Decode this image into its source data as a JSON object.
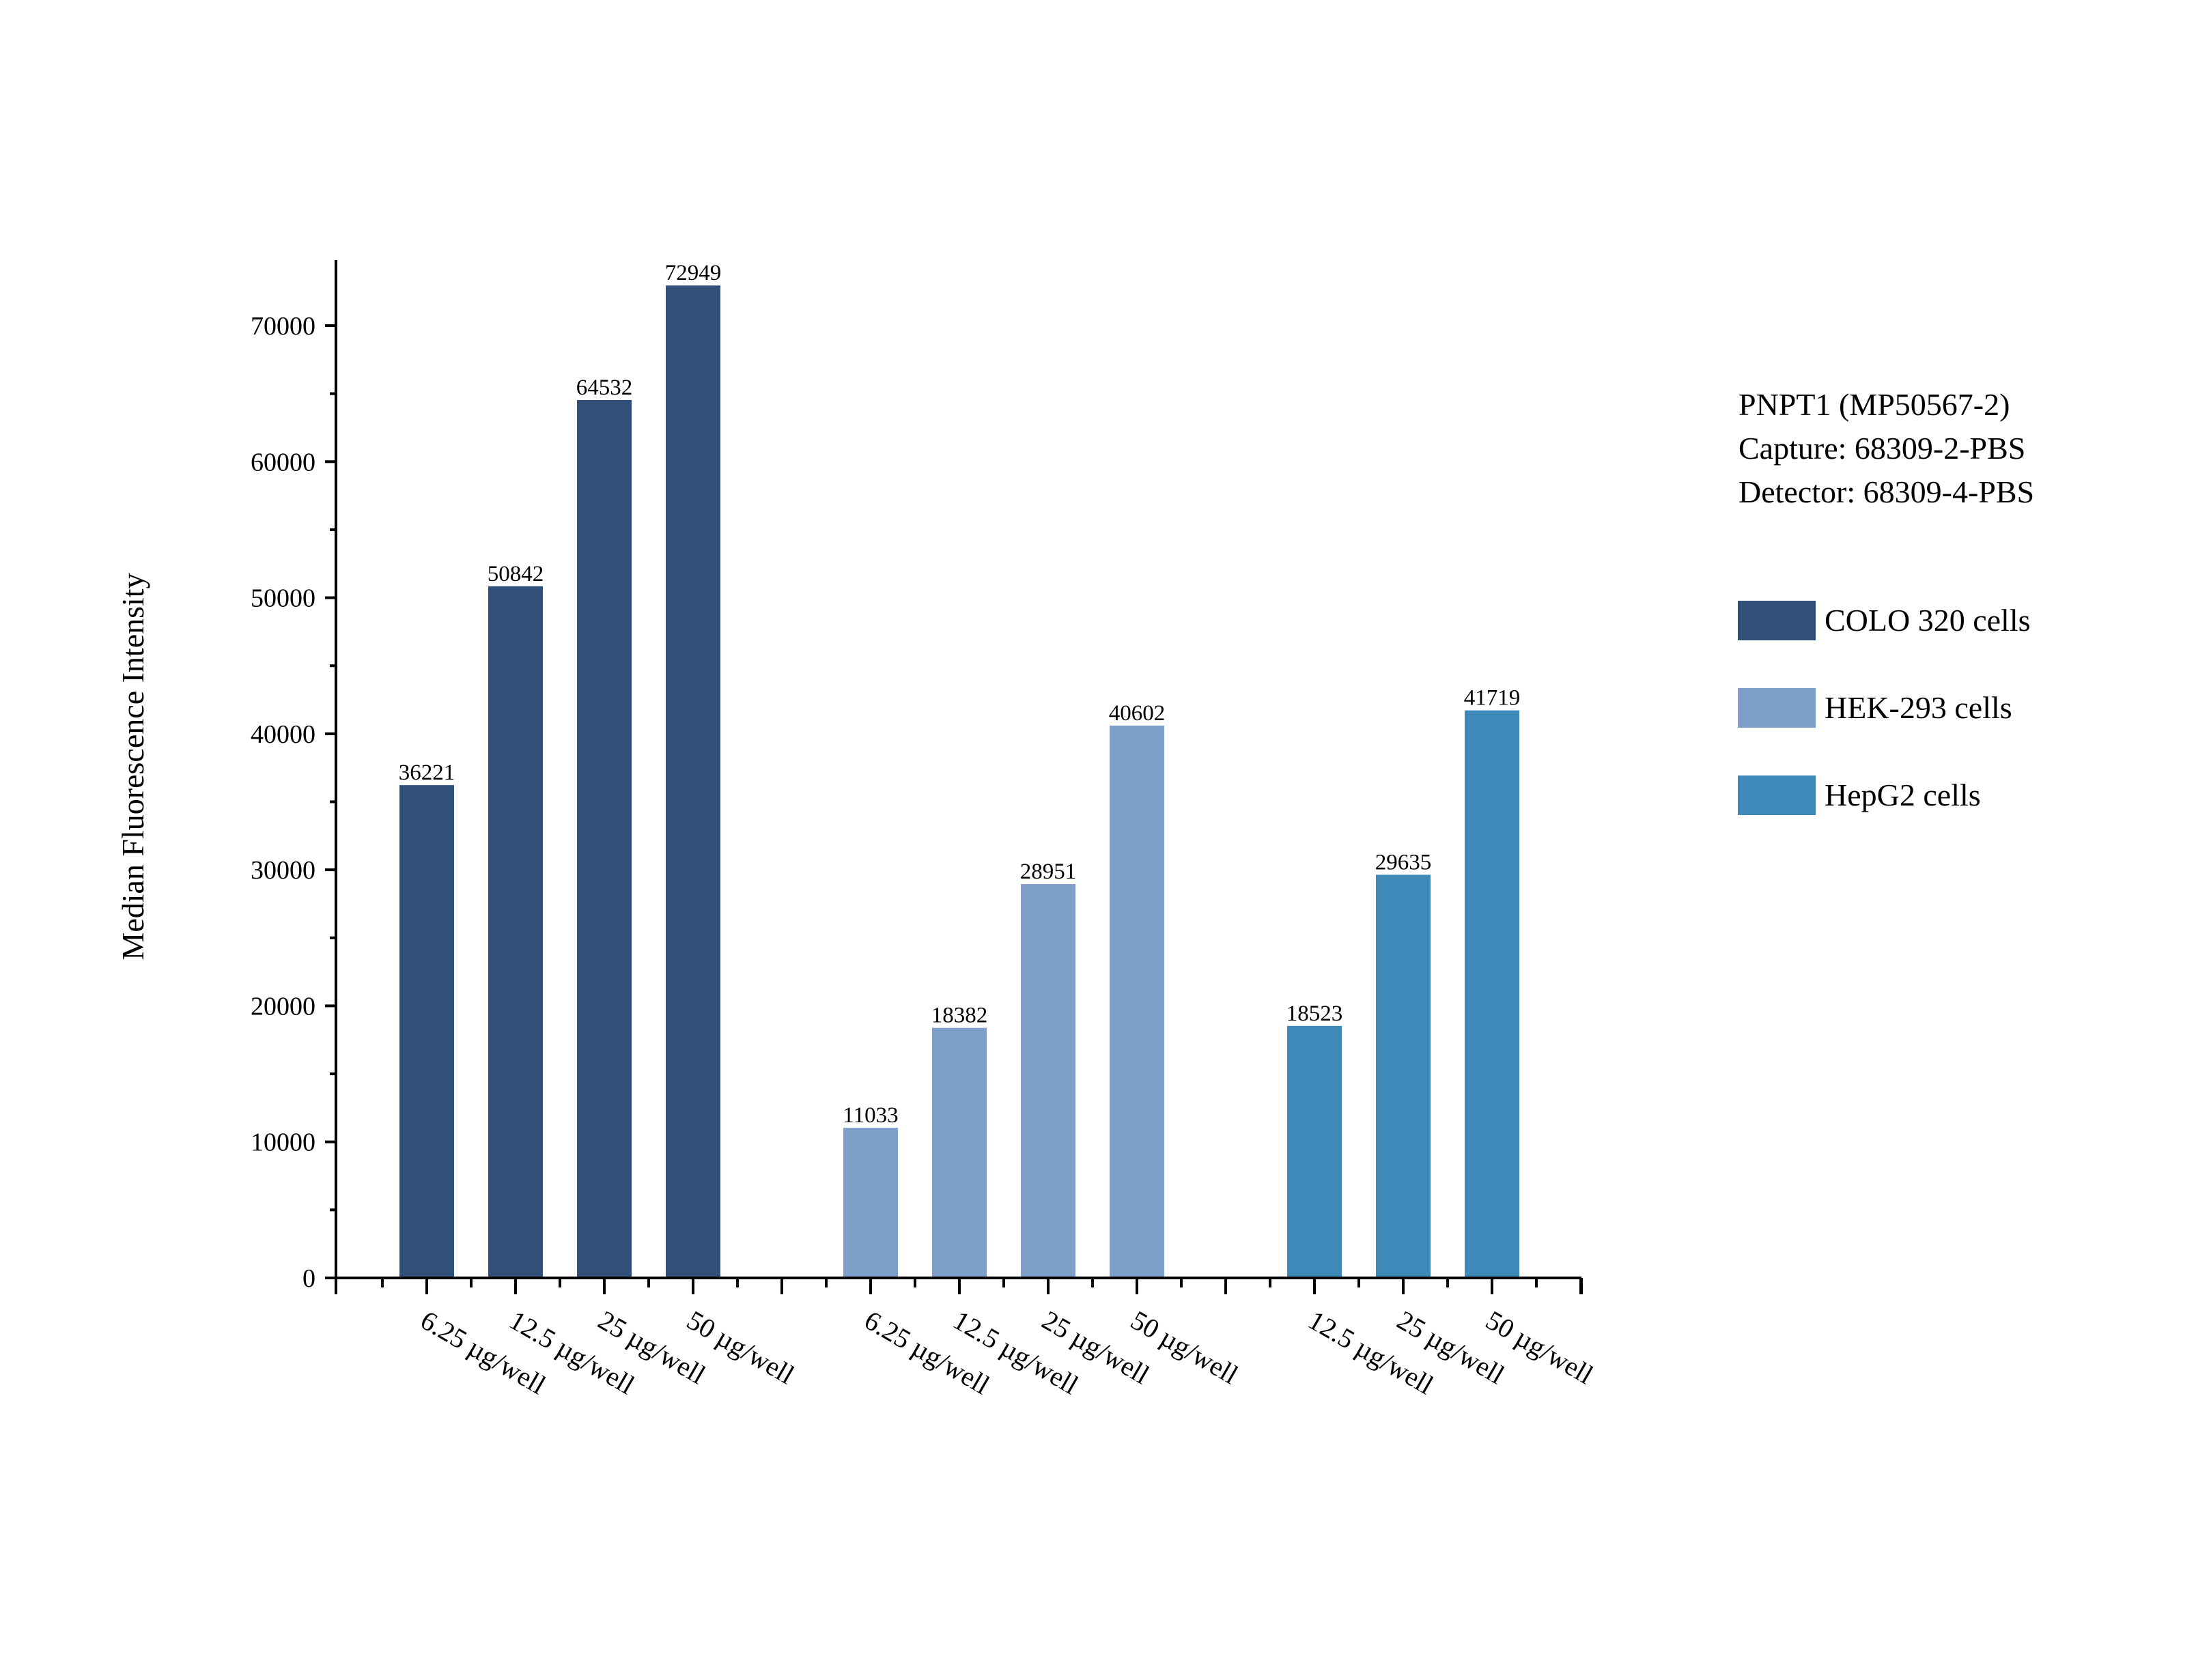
{
  "chart_data": {
    "type": "bar",
    "title": "",
    "ylabel": "Median Fluorescence Intensity",
    "xlabel": "",
    "ylim": [
      0,
      75000
    ],
    "y_ticks": [
      0,
      10000,
      20000,
      30000,
      40000,
      50000,
      60000,
      70000
    ],
    "y_tick_labels": [
      "0",
      "10000",
      "20000",
      "30000",
      "40000",
      "50000",
      "60000",
      "70000"
    ],
    "grid": false,
    "legend_position": "right",
    "info_lines": [
      "PNPT1 (MP50567-2)",
      "Capture: 68309-2-PBS",
      "Detector: 68309-4-PBS"
    ],
    "series": [
      {
        "name": "COLO 320 cells",
        "color": "#304f79",
        "categories": [
          "6.25 µg/well",
          "12.5 µg/well",
          "25 µg/well",
          "50 µg/well"
        ],
        "values": [
          36221,
          50842,
          64532,
          72949
        ],
        "value_labels": [
          "36221",
          "50842",
          "64532",
          "72949"
        ]
      },
      {
        "name": "HEK-293 cells",
        "color": "#7f9fcb",
        "categories": [
          "6.25 µg/well",
          "12.5 µg/well",
          "25 µg/well",
          "50 µg/well"
        ],
        "values": [
          11033,
          18382,
          28951,
          40602
        ],
        "value_labels": [
          "11033",
          "18382",
          "28951",
          "40602"
        ]
      },
      {
        "name": "HepG2 cells",
        "color": "#3d89b8",
        "categories": [
          "12.5 µg/well",
          "25 µg/well",
          "50 µg/well"
        ],
        "values": [
          18523,
          29635,
          41719
        ],
        "value_labels": [
          "18523",
          "29635",
          "41719"
        ]
      }
    ]
  }
}
